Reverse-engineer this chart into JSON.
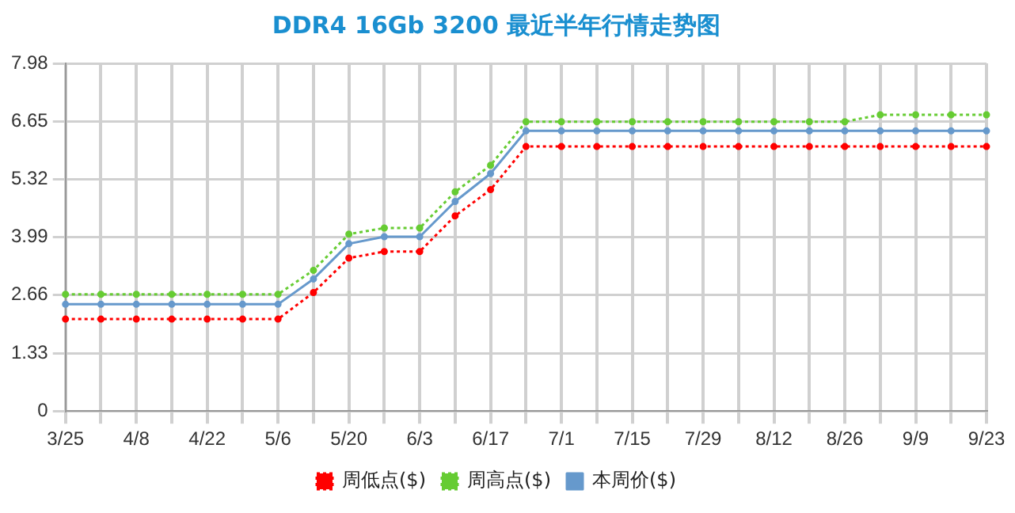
{
  "chart_data": {
    "type": "line",
    "title": "DDR4 16Gb 3200 最近半年行情走势图",
    "categories": [
      "3/25",
      null,
      "4/8",
      null,
      "4/22",
      null,
      "5/6",
      null,
      "5/20",
      null,
      "6/3",
      null,
      "6/17",
      null,
      "7/1",
      null,
      "7/15",
      null,
      "7/29",
      null,
      "8/12",
      null,
      "8/26",
      null,
      "9/9",
      null,
      "9/23"
    ],
    "series": [
      {
        "name": "周低点($)",
        "color": "#ff0000",
        "line_style": "dotted",
        "values": [
          2.11,
          2.11,
          2.11,
          2.11,
          2.11,
          2.11,
          2.11,
          2.72,
          3.51,
          3.66,
          3.66,
          4.48,
          5.08,
          6.07,
          6.07,
          6.07,
          6.07,
          6.07,
          6.07,
          6.07,
          6.07,
          6.07,
          6.07,
          6.07,
          6.07,
          6.07,
          6.07
        ]
      },
      {
        "name": "周高点($)",
        "color": "#66cc33",
        "line_style": "dotted",
        "values": [
          2.68,
          2.68,
          2.68,
          2.68,
          2.68,
          2.68,
          2.68,
          3.23,
          4.06,
          4.2,
          4.2,
          5.03,
          5.64,
          6.64,
          6.64,
          6.64,
          6.64,
          6.64,
          6.64,
          6.64,
          6.64,
          6.64,
          6.64,
          6.8,
          6.8,
          6.8,
          6.8
        ]
      },
      {
        "name": "本周价($)",
        "color": "#6699cc",
        "line_style": "solid",
        "values": [
          2.45,
          2.45,
          2.45,
          2.45,
          2.45,
          2.45,
          2.45,
          3.03,
          3.84,
          4.0,
          4.0,
          4.81,
          5.45,
          6.43,
          6.43,
          6.43,
          6.43,
          6.43,
          6.43,
          6.43,
          6.43,
          6.43,
          6.43,
          6.43,
          6.43,
          6.43,
          6.43
        ]
      }
    ],
    "ylim": [
      0,
      7.98
    ],
    "yticks": [
      0,
      1.33,
      2.66,
      3.99,
      5.32,
      6.65,
      7.98
    ],
    "grid": true,
    "legend": "bottom",
    "marker": "circle"
  }
}
